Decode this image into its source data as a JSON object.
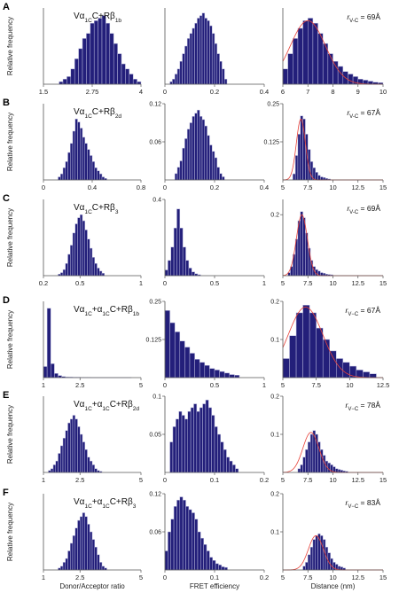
{
  "figure": {
    "ylabel": "Relative frequency",
    "xlabels": [
      "Donor/Acceptor ratio",
      "FRET efficiency",
      "Distance (nm)"
    ],
    "colors": {
      "bar_fill": "#231f7a",
      "bar_edge": "#b8b8dc",
      "fit_line": "#e8433a",
      "axis": "#555555"
    }
  },
  "chart_data": [
    {
      "row": "A",
      "col": 0,
      "type": "bar",
      "label_html": "Vα<sub>1C</sub>C+Rβ<sub>1b</sub>",
      "xlim": [
        1.5,
        4
      ],
      "xticks": [
        "1.5",
        "2.75",
        "4"
      ],
      "ylim": [
        0,
        0.15
      ],
      "yticks": [],
      "bin_start": 1.9,
      "bin_width": 0.1,
      "values": [
        0.005,
        0.01,
        0.015,
        0.03,
        0.05,
        0.07,
        0.09,
        0.1,
        0.12,
        0.125,
        0.13,
        0.135,
        0.12,
        0.1,
        0.08,
        0.06,
        0.04,
        0.03,
        0.02,
        0.01,
        0.005,
        0.004,
        0.003,
        0.002
      ]
    },
    {
      "row": "A",
      "col": 1,
      "type": "bar",
      "xlim": [
        0,
        0.4
      ],
      "xticks": [
        "0",
        "0.2",
        "0.4"
      ],
      "ylim": [
        0,
        0.15
      ],
      "yticks": [],
      "bin_start": 0.02,
      "bin_width": 0.01,
      "values": [
        0.005,
        0.01,
        0.02,
        0.03,
        0.045,
        0.06,
        0.075,
        0.09,
        0.1,
        0.11,
        0.12,
        0.13,
        0.135,
        0.14,
        0.13,
        0.125,
        0.115,
        0.1,
        0.08,
        0.06,
        0.045,
        0.03,
        0.01
      ]
    },
    {
      "row": "A",
      "col": 2,
      "type": "bar",
      "r_label": "r<tspan baseline-shift=\"sub\" font-size=\"6\">V-C</tspan> = 69Å",
      "xlim": [
        6,
        10
      ],
      "xticks": [
        "6",
        "7",
        "8",
        "9",
        "10"
      ],
      "ylim": [
        0,
        0.15
      ],
      "yticks": [],
      "bin_start": 6.0,
      "bin_width": 0.2,
      "values": [
        0.03,
        0.06,
        0.09,
        0.11,
        0.125,
        0.13,
        0.12,
        0.1,
        0.08,
        0.06,
        0.045,
        0.035,
        0.025,
        0.02,
        0.015,
        0.01,
        0.008,
        0.006,
        0.004,
        0.003
      ],
      "fit": {
        "mu": 7.0,
        "sigma": 0.7,
        "peak": 0.125
      }
    },
    {
      "row": "B",
      "col": 0,
      "type": "bar",
      "label_html": "Vα<sub>1C</sub>C+Rβ<sub>2d</sub>",
      "xlim": [
        0,
        0.8
      ],
      "xticks": [
        "0",
        "0.4",
        "0.8"
      ],
      "ylim": [
        0,
        0.25
      ],
      "yticks": [],
      "bin_start": 0.12,
      "bin_width": 0.02,
      "values": [
        0.01,
        0.02,
        0.04,
        0.06,
        0.09,
        0.12,
        0.16,
        0.2,
        0.19,
        0.17,
        0.14,
        0.12,
        0.1,
        0.08,
        0.06,
        0.04,
        0.03,
        0.02,
        0.01,
        0.005
      ]
    },
    {
      "row": "B",
      "col": 1,
      "type": "bar",
      "xlim": [
        0,
        0.4
      ],
      "xticks": [
        "0",
        "0.2",
        "0.4"
      ],
      "ylim": [
        0,
        0.12
      ],
      "yticks": [
        "0.06",
        "0.12"
      ],
      "bin_start": 0.04,
      "bin_width": 0.01,
      "values": [
        0.01,
        0.02,
        0.03,
        0.05,
        0.065,
        0.08,
        0.09,
        0.1,
        0.105,
        0.11,
        0.1,
        0.095,
        0.085,
        0.07,
        0.055,
        0.045,
        0.035,
        0.02,
        0.01,
        0.005
      ]
    },
    {
      "row": "B",
      "col": 2,
      "type": "bar",
      "r_label": "r<tspan baseline-shift=\"sub\" font-size=\"6\">V-C</tspan> = 67Å",
      "xlim": [
        5,
        15
      ],
      "xticks": [
        "5",
        "7.5",
        "10",
        "12.5",
        "15"
      ],
      "ylim": [
        0,
        0.25
      ],
      "yticks": [
        "0.125",
        "0.25"
      ],
      "bin_start": 6.0,
      "bin_width": 0.25,
      "values": [
        0.02,
        0.08,
        0.15,
        0.21,
        0.2,
        0.15,
        0.1,
        0.06,
        0.04,
        0.025,
        0.015,
        0.01,
        0.008,
        0.005,
        0.003
      ],
      "fit": {
        "mu": 6.8,
        "sigma": 0.45,
        "peak": 0.2
      }
    },
    {
      "row": "C",
      "col": 0,
      "type": "bar",
      "label_html": "Vα<sub>1C</sub>C+Rβ<sub>3</sub>",
      "xlim": [
        0.2,
        1
      ],
      "xticks": [
        "0.2",
        "0.5",
        "1"
      ],
      "ylim": [
        0,
        0.25
      ],
      "yticks": [],
      "bin_start": 0.32,
      "bin_width": 0.02,
      "values": [
        0.005,
        0.01,
        0.02,
        0.04,
        0.07,
        0.1,
        0.14,
        0.17,
        0.19,
        0.2,
        0.18,
        0.15,
        0.12,
        0.09,
        0.06,
        0.04,
        0.025,
        0.015,
        0.008
      ]
    },
    {
      "row": "C",
      "col": 1,
      "type": "bar",
      "xlim": [
        0,
        1
      ],
      "xticks": [
        "0",
        "0.5",
        "1"
      ],
      "ylim": [
        0,
        0.4
      ],
      "yticks": [
        "0.4"
      ],
      "bin_start": 0.0,
      "bin_width": 0.03,
      "values": [
        0.03,
        0.08,
        0.15,
        0.25,
        0.35,
        0.25,
        0.15,
        0.08,
        0.04,
        0.02,
        0.01,
        0.005
      ]
    },
    {
      "row": "C",
      "col": 2,
      "type": "bar",
      "r_label": "r<tspan baseline-shift=\"sub\" font-size=\"6\">V-C</tspan> = 69Å",
      "xlim": [
        5,
        15
      ],
      "xticks": [
        "5",
        "7.5",
        "10",
        "12.5",
        "15"
      ],
      "ylim": [
        0,
        0.25
      ],
      "yticks": [
        "0.2"
      ],
      "bin_start": 5.5,
      "bin_width": 0.25,
      "values": [
        0.01,
        0.03,
        0.07,
        0.12,
        0.18,
        0.21,
        0.19,
        0.14,
        0.09,
        0.05,
        0.03,
        0.02,
        0.015,
        0.01,
        0.008,
        0.005,
        0.004,
        0.003
      ],
      "fit": {
        "mu": 6.9,
        "sigma": 0.55,
        "peak": 0.2
      }
    },
    {
      "row": "D",
      "col": 0,
      "type": "bar",
      "label_html": "Vα<sub>1C</sub>+α<sub>1C</sub>C+Rβ<sub>1b</sub>",
      "xlim": [
        1,
        5
      ],
      "xticks": [
        "1",
        "2.5",
        "5"
      ],
      "ylim": [
        0,
        0.55
      ],
      "yticks": [],
      "bin_start": 1.0,
      "bin_width": 0.15,
      "values": [
        0.08,
        0.5,
        0.1,
        0.03,
        0.015,
        0.008,
        0.005,
        0.004,
        0.003,
        0.003,
        0.002,
        0.002,
        0.002,
        0.001,
        0.001,
        0.001,
        0.001,
        0.001,
        0.001,
        0.001,
        0.001,
        0.001,
        0.001,
        0.001
      ]
    },
    {
      "row": "D",
      "col": 1,
      "type": "bar",
      "xlim": [
        0,
        1
      ],
      "xticks": [
        "0",
        "0.5",
        "1"
      ],
      "ylim": [
        0,
        0.25
      ],
      "yticks": [
        "0.125",
        "0.25"
      ],
      "bin_start": 0.0,
      "bin_width": 0.05,
      "values": [
        0.22,
        0.18,
        0.15,
        0.12,
        0.1,
        0.08,
        0.06,
        0.05,
        0.04,
        0.03,
        0.025,
        0.02,
        0.015,
        0.01,
        0.008
      ]
    },
    {
      "row": "D",
      "col": 2,
      "type": "bar",
      "r_label": "r<tspan baseline-shift=\"sub\" font-size=\"6\">V−C</tspan> = 67Å",
      "xlim": [
        5,
        12.5
      ],
      "xticks": [
        "5",
        "7.5",
        "10",
        "12.5"
      ],
      "ylim": [
        0,
        0.2
      ],
      "yticks": [
        "0.1",
        "0.2"
      ],
      "bin_start": 5.0,
      "bin_width": 0.5,
      "values": [
        0.05,
        0.11,
        0.17,
        0.19,
        0.17,
        0.13,
        0.1,
        0.07,
        0.05,
        0.04,
        0.03,
        0.02,
        0.015,
        0.01
      ],
      "fit": {
        "mu": 6.7,
        "sigma": 1.3,
        "peak": 0.185
      }
    },
    {
      "row": "E",
      "col": 0,
      "type": "bar",
      "label_html": "Vα<sub>1C</sub>+α<sub>1C</sub>C+Rβ<sub>2d</sub>",
      "xlim": [
        1,
        5
      ],
      "xticks": [
        "1",
        "2.5",
        "5"
      ],
      "ylim": [
        0,
        0.2
      ],
      "yticks": [],
      "bin_start": 1.2,
      "bin_width": 0.1,
      "values": [
        0.005,
        0.01,
        0.02,
        0.03,
        0.05,
        0.07,
        0.09,
        0.11,
        0.13,
        0.14,
        0.15,
        0.14,
        0.12,
        0.1,
        0.08,
        0.06,
        0.04,
        0.03,
        0.02,
        0.01,
        0.005,
        0.003
      ]
    },
    {
      "row": "E",
      "col": 1,
      "type": "bar",
      "xlim": [
        0,
        0.2
      ],
      "xticks": [
        "0",
        "0.1",
        "0.2"
      ],
      "ylim": [
        0,
        0.1
      ],
      "yticks": [
        "0.05",
        "0.1"
      ],
      "bin_start": 0.01,
      "bin_width": 0.006,
      "values": [
        0.04,
        0.06,
        0.07,
        0.08,
        0.075,
        0.07,
        0.08,
        0.085,
        0.09,
        0.08,
        0.085,
        0.09,
        0.095,
        0.085,
        0.075,
        0.06,
        0.05,
        0.04,
        0.03,
        0.02,
        0.015,
        0.01,
        0.005
      ]
    },
    {
      "row": "E",
      "col": 2,
      "type": "bar",
      "r_label": "r<tspan baseline-shift=\"sub\" font-size=\"6\">V−C</tspan> = 78Å",
      "xlim": [
        5,
        15
      ],
      "xticks": [
        "5",
        "7.5",
        "10",
        "12.5",
        "15"
      ],
      "ylim": [
        0,
        0.2
      ],
      "yticks": [
        "0.1",
        "0.2"
      ],
      "bin_start": 6.5,
      "bin_width": 0.25,
      "values": [
        0.01,
        0.02,
        0.04,
        0.06,
        0.08,
        0.1,
        0.11,
        0.1,
        0.08,
        0.06,
        0.045,
        0.03,
        0.025,
        0.02,
        0.015,
        0.01,
        0.008,
        0.006,
        0.004,
        0.003
      ],
      "fit": {
        "mu": 7.8,
        "sigma": 0.8,
        "peak": 0.105
      }
    },
    {
      "row": "F",
      "col": 0,
      "type": "bar",
      "label_html": "Vα<sub>1C</sub>+α<sub>1C</sub>C+Rβ<sub>3</sub>",
      "xlim": [
        1,
        5
      ],
      "xticks": [
        "1",
        "2.5",
        "5"
      ],
      "ylim": [
        0,
        0.2
      ],
      "yticks": [],
      "bin_start": 1.6,
      "bin_width": 0.1,
      "values": [
        0.005,
        0.01,
        0.02,
        0.03,
        0.05,
        0.07,
        0.09,
        0.11,
        0.13,
        0.14,
        0.15,
        0.14,
        0.12,
        0.1,
        0.08,
        0.06,
        0.04,
        0.02,
        0.01,
        0.005
      ]
    },
    {
      "row": "F",
      "col": 1,
      "type": "bar",
      "xlim": [
        0,
        0.2
      ],
      "xticks": [
        "0",
        "0.1",
        "0.2"
      ],
      "ylim": [
        0,
        0.12
      ],
      "yticks": [
        "0.06",
        "0.12"
      ],
      "bin_start": 0.0,
      "bin_width": 0.006,
      "values": [
        0.03,
        0.06,
        0.08,
        0.1,
        0.11,
        0.115,
        0.11,
        0.1,
        0.095,
        0.09,
        0.08,
        0.06,
        0.05,
        0.04,
        0.03,
        0.02,
        0.015,
        0.01,
        0.008,
        0.005,
        0.004
      ]
    },
    {
      "row": "F",
      "col": 2,
      "type": "bar",
      "r_label": "r<tspan baseline-shift=\"sub\" font-size=\"6\">V−C</tspan> = 83Å",
      "xlim": [
        5,
        15
      ],
      "xticks": [
        "5",
        "7.5",
        "10",
        "12.5",
        "15"
      ],
      "ylim": [
        0,
        0.2
      ],
      "yticks": [
        "0.1",
        "0.2"
      ],
      "bin_start": 7.0,
      "bin_width": 0.25,
      "values": [
        0.01,
        0.02,
        0.04,
        0.06,
        0.08,
        0.09,
        0.095,
        0.09,
        0.08,
        0.06,
        0.045,
        0.03,
        0.02,
        0.015,
        0.01,
        0.008,
        0.005
      ],
      "fit": {
        "mu": 8.3,
        "sigma": 0.75,
        "peak": 0.09
      }
    }
  ]
}
